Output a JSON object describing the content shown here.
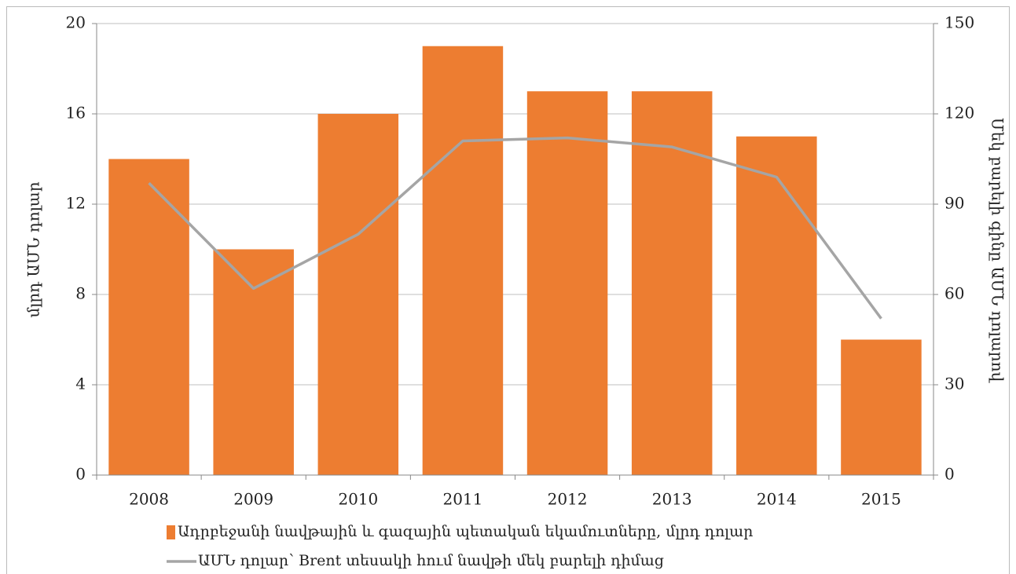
{
  "chart_data": {
    "type": "combo",
    "categories": [
      "2008",
      "2009",
      "2010",
      "2011",
      "2012",
      "2013",
      "2014",
      "2015"
    ],
    "series": [
      {
        "name": "Ադրբեջանի նավթային և գազային պետական եկամուտները, մլրդ դոլար",
        "type": "bar",
        "color": "#ed7d31",
        "values": [
          14,
          10,
          16,
          19,
          17,
          17,
          15,
          6
        ]
      },
      {
        "name": "ԱՄՆ դոլար՝ Brent տեսակի հում նավթի մեկ բարելի դիմաց",
        "type": "line",
        "axis": "y2",
        "color": "#a5a5a5",
        "values": [
          97,
          62,
          80,
          111,
          112,
          109,
          99,
          52
        ]
      }
    ],
    "ylabel": "մլրդ ԱՄՆ դոլար",
    "y2label": "Մեկ բարելի գինը ԱՄՆ դոլարով",
    "ylim": [
      0,
      20
    ],
    "yticks": [
      0,
      4,
      8,
      12,
      16,
      20
    ],
    "y2lim": [
      0,
      150
    ],
    "y2ticks": [
      0,
      30,
      60,
      90,
      120,
      150
    ],
    "grid": true,
    "legend": "bottom"
  }
}
